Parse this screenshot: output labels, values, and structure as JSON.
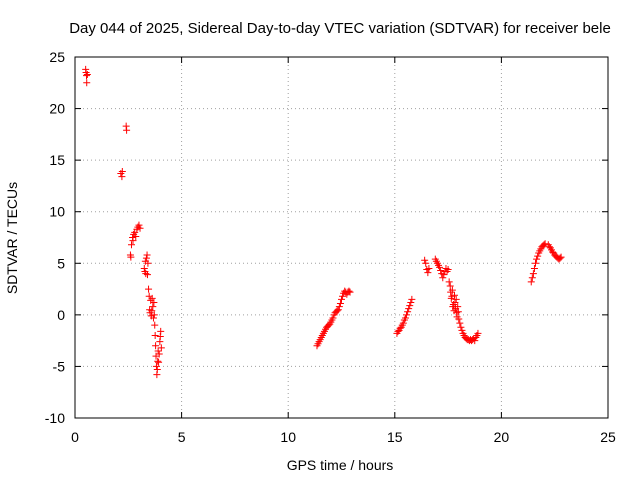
{
  "chart_data": {
    "type": "scatter",
    "title": "Day 044 of 2025, Sidereal Day-to-day VTEC variation (SDTVAR) for receiver bele",
    "xlabel": "GPS time / hours",
    "ylabel": "SDTVAR / TECUs",
    "xlim": [
      0,
      25
    ],
    "ylim": [
      -10,
      25
    ],
    "xticks": [
      0,
      5,
      10,
      15,
      20,
      25
    ],
    "yticks": [
      -10,
      -5,
      0,
      5,
      10,
      15,
      20,
      25
    ],
    "grid": true,
    "marker": "+",
    "color": "#ff0000",
    "series": [
      {
        "name": "SDTVAR",
        "points": [
          [
            0.5,
            23.8
          ],
          [
            0.52,
            23.5
          ],
          [
            0.54,
            23.2
          ],
          [
            0.55,
            22.5
          ],
          [
            0.58,
            23.3
          ],
          [
            2.15,
            13.7
          ],
          [
            2.2,
            13.4
          ],
          [
            2.22,
            13.9
          ],
          [
            2.4,
            18.3
          ],
          [
            2.42,
            17.9
          ],
          [
            2.6,
            5.8
          ],
          [
            2.62,
            5.6
          ],
          [
            2.65,
            6.8
          ],
          [
            2.7,
            7.5
          ],
          [
            2.72,
            7.2
          ],
          [
            2.75,
            7.8
          ],
          [
            2.8,
            8.0
          ],
          [
            2.85,
            7.6
          ],
          [
            2.9,
            8.3
          ],
          [
            2.95,
            8.5
          ],
          [
            3.0,
            8.7
          ],
          [
            3.05,
            8.4
          ],
          [
            3.25,
            4.5
          ],
          [
            3.28,
            4.2
          ],
          [
            3.3,
            5.2
          ],
          [
            3.32,
            4.0
          ],
          [
            3.35,
            5.5
          ],
          [
            3.38,
            5.8
          ],
          [
            3.4,
            3.9
          ],
          [
            3.42,
            5.0
          ],
          [
            3.45,
            2.5
          ],
          [
            3.48,
            1.8
          ],
          [
            3.5,
            0.5
          ],
          [
            3.52,
            0.2
          ],
          [
            3.55,
            1.4
          ],
          [
            3.58,
            -0.1
          ],
          [
            3.6,
            0.4
          ],
          [
            3.62,
            1.6
          ],
          [
            3.65,
            0.8
          ],
          [
            3.68,
            -0.3
          ],
          [
            3.7,
            1.2
          ],
          [
            3.72,
            0.0
          ],
          [
            3.74,
            -1.0
          ],
          [
            3.76,
            -2.0
          ],
          [
            3.78,
            -3.0
          ],
          [
            3.8,
            -4.0
          ],
          [
            3.82,
            -5.0
          ],
          [
            3.84,
            -5.8
          ],
          [
            3.86,
            -5.3
          ],
          [
            3.88,
            -4.5
          ],
          [
            3.9,
            -3.5
          ],
          [
            3.92,
            -4.6
          ],
          [
            3.95,
            -3.8
          ],
          [
            3.98,
            -2.6
          ],
          [
            4.0,
            -2.1
          ],
          [
            4.02,
            -1.6
          ],
          [
            4.05,
            -3.2
          ],
          [
            11.35,
            -3.0
          ],
          [
            11.4,
            -2.8
          ],
          [
            11.45,
            -2.6
          ],
          [
            11.5,
            -2.4
          ],
          [
            11.55,
            -2.2
          ],
          [
            11.6,
            -2.0
          ],
          [
            11.65,
            -1.8
          ],
          [
            11.7,
            -1.6
          ],
          [
            11.75,
            -1.4
          ],
          [
            11.8,
            -1.2
          ],
          [
            11.85,
            -1.1
          ],
          [
            11.9,
            -1.0
          ],
          [
            11.95,
            -0.9
          ],
          [
            12.0,
            -0.7
          ],
          [
            12.05,
            -0.5
          ],
          [
            12.1,
            -0.3
          ],
          [
            12.15,
            0.0
          ],
          [
            12.2,
            0.2
          ],
          [
            12.25,
            0.3
          ],
          [
            12.3,
            0.4
          ],
          [
            12.35,
            0.5
          ],
          [
            12.4,
            0.8
          ],
          [
            12.45,
            1.1
          ],
          [
            12.5,
            1.5
          ],
          [
            12.55,
            1.8
          ],
          [
            12.6,
            2.1
          ],
          [
            12.65,
            2.3
          ],
          [
            12.7,
            2.2
          ],
          [
            12.75,
            2.0
          ],
          [
            12.8,
            2.2
          ],
          [
            12.85,
            2.3
          ],
          [
            12.9,
            2.2
          ],
          [
            15.1,
            -1.8
          ],
          [
            15.15,
            -1.6
          ],
          [
            15.2,
            -1.5
          ],
          [
            15.25,
            -1.3
          ],
          [
            15.3,
            -1.2
          ],
          [
            15.35,
            -1.0
          ],
          [
            15.4,
            -0.8
          ],
          [
            15.45,
            -0.5
          ],
          [
            15.5,
            -0.3
          ],
          [
            15.55,
            0.0
          ],
          [
            15.6,
            0.3
          ],
          [
            15.65,
            0.6
          ],
          [
            15.7,
            0.9
          ],
          [
            15.75,
            1.2
          ],
          [
            15.8,
            1.5
          ],
          [
            16.4,
            5.3
          ],
          [
            16.45,
            5.0
          ],
          [
            16.5,
            4.4
          ],
          [
            16.55,
            4.1
          ],
          [
            16.6,
            4.5
          ],
          [
            16.9,
            5.4
          ],
          [
            16.95,
            5.2
          ],
          [
            17.0,
            5.0
          ],
          [
            17.05,
            4.8
          ],
          [
            17.1,
            4.6
          ],
          [
            17.15,
            4.3
          ],
          [
            17.2,
            4.0
          ],
          [
            17.25,
            3.6
          ],
          [
            17.3,
            3.9
          ],
          [
            17.35,
            4.2
          ],
          [
            17.4,
            4.5
          ],
          [
            17.45,
            4.2
          ],
          [
            17.5,
            4.4
          ],
          [
            17.55,
            3.2
          ],
          [
            17.6,
            2.8
          ],
          [
            17.62,
            2.2
          ],
          [
            17.65,
            1.6
          ],
          [
            17.68,
            1.8
          ],
          [
            17.7,
            2.4
          ],
          [
            17.72,
            0.8
          ],
          [
            17.75,
            1.0
          ],
          [
            17.78,
            0.4
          ],
          [
            17.8,
            1.9
          ],
          [
            17.82,
            1.2
          ],
          [
            17.85,
            0.6
          ],
          [
            17.88,
            1.5
          ],
          [
            17.9,
            0.2
          ],
          [
            17.92,
            -0.2
          ],
          [
            17.95,
            0.8
          ],
          [
            17.98,
            0.3
          ],
          [
            18.0,
            -0.4
          ],
          [
            18.05,
            -0.8
          ],
          [
            18.1,
            -1.2
          ],
          [
            18.15,
            -1.5
          ],
          [
            18.2,
            -1.8
          ],
          [
            18.25,
            -2.0
          ],
          [
            18.3,
            -2.2
          ],
          [
            18.35,
            -2.3
          ],
          [
            18.4,
            -2.4
          ],
          [
            18.45,
            -2.4
          ],
          [
            18.5,
            -2.5
          ],
          [
            18.55,
            -2.4
          ],
          [
            18.6,
            -2.5
          ],
          [
            18.65,
            -2.4
          ],
          [
            18.7,
            -2.3
          ],
          [
            18.75,
            -2.5
          ],
          [
            18.8,
            -2.2
          ],
          [
            18.85,
            -2.0
          ],
          [
            18.9,
            -1.8
          ],
          [
            21.4,
            3.2
          ],
          [
            21.45,
            3.6
          ],
          [
            21.5,
            4.0
          ],
          [
            21.55,
            4.5
          ],
          [
            21.6,
            5.0
          ],
          [
            21.65,
            5.4
          ],
          [
            21.7,
            5.7
          ],
          [
            21.75,
            6.0
          ],
          [
            21.8,
            6.2
          ],
          [
            21.85,
            6.4
          ],
          [
            21.9,
            6.6
          ],
          [
            21.95,
            6.7
          ],
          [
            22.0,
            6.8
          ],
          [
            22.05,
            6.9
          ],
          [
            22.2,
            6.8
          ],
          [
            22.25,
            6.6
          ],
          [
            22.3,
            6.5
          ],
          [
            22.35,
            6.3
          ],
          [
            22.4,
            6.1
          ],
          [
            22.45,
            6.0
          ],
          [
            22.5,
            5.8
          ],
          [
            22.55,
            5.7
          ],
          [
            22.6,
            5.6
          ],
          [
            22.65,
            5.5
          ],
          [
            22.7,
            5.4
          ],
          [
            22.75,
            5.5
          ],
          [
            22.8,
            5.6
          ]
        ]
      }
    ]
  }
}
